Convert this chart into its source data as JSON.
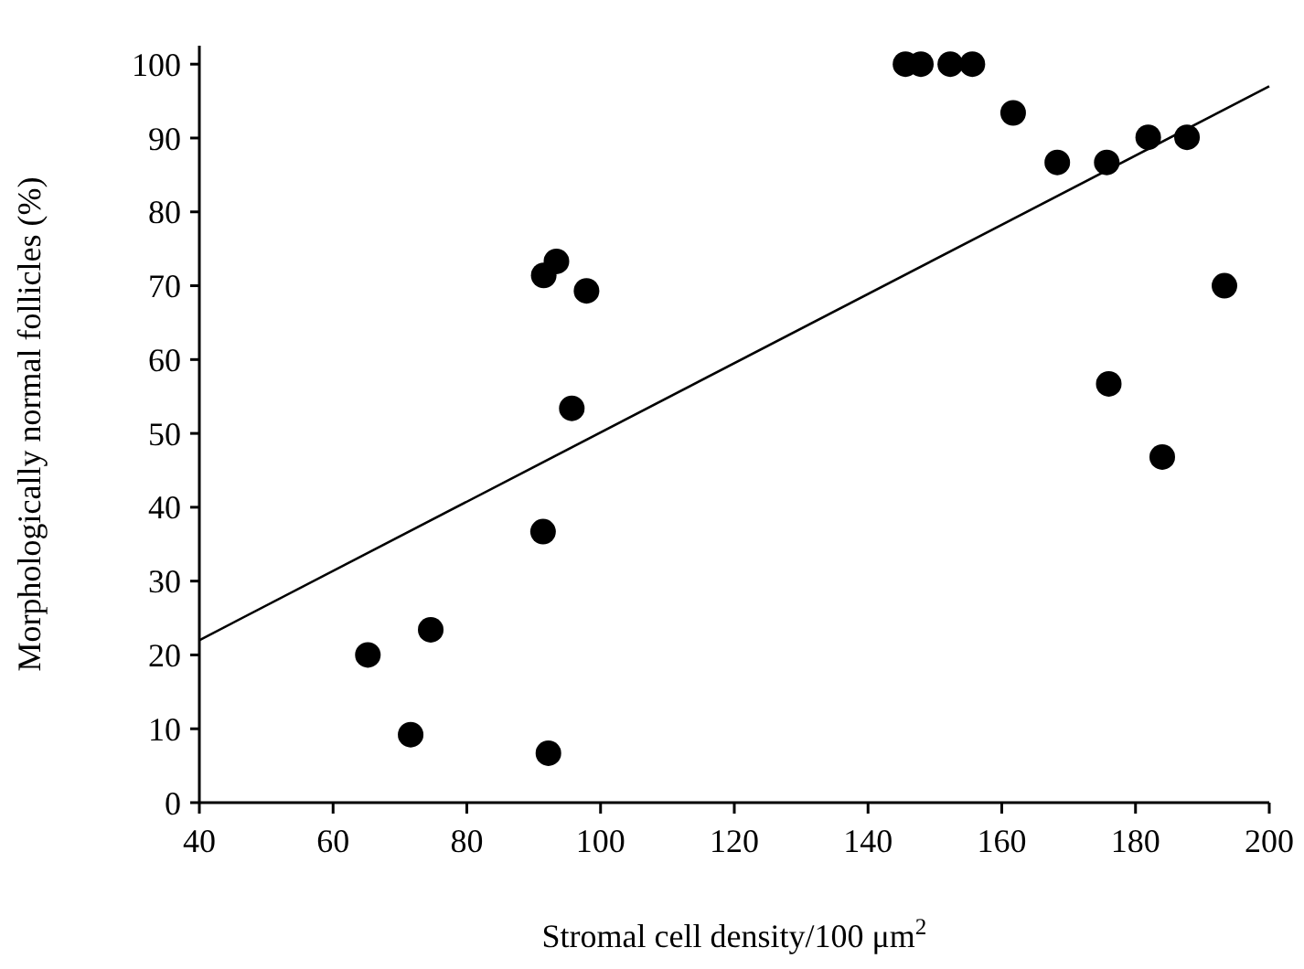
{
  "chart_data": {
    "type": "scatter",
    "xlabel": "Stromal cell density/100 μm$^{2}$",
    "ylabel": "Morphologically normal follicles (%)",
    "xlim": [
      40,
      200
    ],
    "xticks": [
      40,
      60,
      80,
      100,
      120,
      140,
      160,
      180,
      200
    ],
    "ylim": [
      0,
      102.5
    ],
    "yticks": [
      0,
      10,
      20,
      30,
      40,
      50,
      60,
      70,
      80,
      90,
      100
    ],
    "grid": false,
    "series": [
      {
        "marker": "circle",
        "color": "#000000",
        "x": [
          65.2,
          71.6,
          74.6,
          91.5,
          93.4,
          97.9,
          95.7,
          91.4,
          92.2,
          145.6,
          147.9,
          152.3,
          155.6,
          161.7,
          168.3,
          175.7,
          181.9,
          187.7,
          193.3,
          176.0,
          184.0
        ],
        "values": [
          20,
          9.2,
          23.4,
          71.4,
          73.3,
          69.3,
          53.4,
          36.7,
          6.7,
          100,
          100,
          100,
          100,
          93.4,
          86.7,
          86.7,
          90.1,
          90.1,
          70,
          56.7,
          46.8
        ]
      },
      {
        "type": "line",
        "marker": "none",
        "color": "#000000",
        "line_style": "solid",
        "x": [
          40,
          200
        ],
        "values": [
          22,
          97
        ]
      }
    ]
  }
}
